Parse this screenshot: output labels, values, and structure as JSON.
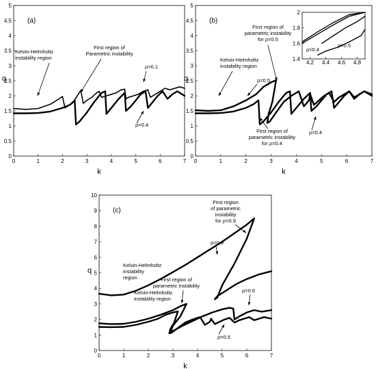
{
  "chart_data": [
    {
      "type": "line",
      "panel": "(a)",
      "xlabel": "k",
      "ylabel": "q",
      "xlim": [
        0,
        7
      ],
      "ylim": [
        0,
        5
      ],
      "xticks": [
        0,
        1,
        2,
        3,
        4,
        5,
        6,
        7
      ],
      "yticks": [
        0,
        0.5,
        1,
        1.5,
        2,
        2.5,
        3,
        3.5,
        4,
        4.5,
        5
      ],
      "grid": false,
      "series": [
        {
          "name": "ρ=0.1",
          "style": "thin",
          "x": [
            0,
            0.5,
            1,
            1.5,
            1.9,
            2.0,
            2.1,
            2.4,
            2.75,
            2.85,
            3.0,
            3.2,
            3.4,
            3.5,
            3.6,
            3.8,
            4.0,
            4.2,
            4.4,
            4.55,
            4.6,
            4.7,
            4.9,
            5.1,
            5.3,
            5.5,
            5.6,
            5.8,
            6.0,
            6.2,
            6.4,
            6.6,
            6.8,
            7.0
          ],
          "y": [
            1.58,
            1.55,
            1.58,
            1.72,
            1.92,
            1.98,
            1.6,
            1.75,
            2.18,
            1.75,
            1.85,
            1.95,
            2.1,
            2.15,
            1.95,
            2.0,
            2.05,
            2.1,
            2.2,
            2.22,
            1.9,
            1.95,
            2.0,
            2.05,
            2.15,
            2.2,
            1.95,
            2.05,
            2.15,
            2.25,
            2.2,
            2.25,
            2.3,
            2.25
          ]
        },
        {
          "name": "ρ=0.4",
          "style": "thick",
          "x": [
            0,
            0.5,
            1,
            1.5,
            2.0,
            2.3,
            2.5,
            2.55,
            2.7,
            3.0,
            3.3,
            3.6,
            3.75,
            3.8,
            4.0,
            4.3,
            4.55,
            4.6,
            4.8,
            5.0,
            5.2,
            5.4,
            5.5,
            5.7,
            5.9,
            6.1,
            6.3,
            6.5,
            6.7,
            7.0
          ],
          "y": [
            1.42,
            1.42,
            1.43,
            1.48,
            1.6,
            1.7,
            1.85,
            1.05,
            1.15,
            1.45,
            1.8,
            2.1,
            2.15,
            1.4,
            1.6,
            1.9,
            2.1,
            1.5,
            1.65,
            1.85,
            2.05,
            2.15,
            1.6,
            1.8,
            2.0,
            2.15,
            1.9,
            2.05,
            2.15,
            2.0
          ]
        }
      ],
      "annotations": [
        {
          "text": "Kelvin-Helmholtz"
        },
        {
          "text": "instability region"
        },
        {
          "text": "First region of"
        },
        {
          "text": "Parametric instability"
        },
        {
          "text": "ρ=0.1"
        },
        {
          "text": "ρ=0.4"
        }
      ]
    },
    {
      "type": "line",
      "panel": "(b)",
      "xlabel": "k",
      "ylabel": "q",
      "xlim": [
        0,
        7
      ],
      "ylim": [
        0,
        5
      ],
      "xticks": [
        0,
        1,
        2,
        3,
        4,
        5,
        6,
        7
      ],
      "yticks": [
        0,
        0.5,
        1,
        1.5,
        2,
        2.5,
        3,
        3.5,
        4,
        4.5,
        5
      ],
      "grid": false,
      "series": [
        {
          "name": "ρ=0.5",
          "style": "thick",
          "x": [
            0,
            0.5,
            1,
            1.5,
            2.0,
            2.4,
            2.7,
            3.0,
            3.2,
            3.05,
            2.9,
            2.85,
            2.95,
            3.2,
            3.5,
            3.8,
            4.1,
            4.3,
            4.5,
            4.55,
            4.7,
            4.9,
            5.1,
            5.3,
            5.5,
            5.7,
            5.9,
            6.1,
            6.3,
            6.5,
            6.7,
            7.0
          ],
          "y": [
            1.52,
            1.5,
            1.52,
            1.65,
            1.85,
            2.05,
            2.3,
            2.45,
            2.52,
            1.8,
            1.4,
            1.1,
            1.15,
            1.45,
            1.8,
            2.0,
            2.15,
            1.65,
            1.85,
            2.05,
            1.7,
            1.85,
            2.0,
            2.1,
            1.8,
            1.95,
            2.05,
            2.15,
            1.95,
            2.05,
            2.15,
            2.05
          ]
        },
        {
          "name": "ρ=0.4",
          "style": "thick",
          "x": [
            0,
            0.5,
            1,
            1.5,
            2.0,
            2.3,
            2.5,
            2.55,
            2.7,
            3.0,
            3.3,
            3.6,
            3.75,
            3.8,
            4.0,
            4.3,
            4.55,
            4.6,
            4.8,
            5.0,
            5.2,
            5.4,
            5.5,
            5.7,
            5.9,
            6.1,
            6.3,
            6.5,
            6.7,
            7.0
          ],
          "y": [
            1.42,
            1.42,
            1.43,
            1.48,
            1.6,
            1.72,
            1.85,
            1.05,
            1.15,
            1.45,
            1.8,
            2.1,
            2.15,
            1.4,
            1.6,
            1.9,
            2.1,
            1.5,
            1.65,
            1.85,
            2.05,
            2.15,
            1.6,
            1.8,
            2.0,
            2.15,
            1.9,
            2.05,
            2.15,
            2.0
          ]
        }
      ],
      "annotations": [
        {
          "text": "First region of"
        },
        {
          "text": "parametric instability"
        },
        {
          "text": "for ρ=0.5"
        },
        {
          "text": "Kelvin-Helmholtz"
        },
        {
          "text": "instability region"
        },
        {
          "text": "ρ=0.5"
        },
        {
          "text": "First region of"
        },
        {
          "text": "parametric instability"
        },
        {
          "text": "for ρ=0.4"
        },
        {
          "text": "ρ=0.4"
        }
      ],
      "inset": {
        "xlim": [
          4.1,
          4.9
        ],
        "ylim": [
          1.4,
          2.0
        ],
        "xticks": [
          4.2,
          4.4,
          4.6,
          4.8
        ],
        "yticks": [
          1.4,
          1.6,
          1.8,
          2
        ],
        "series": [
          {
            "name": "ρ=0.4",
            "x": [
              4.1,
              4.3,
              4.5,
              4.7,
              4.9
            ],
            "y": [
              1.6,
              1.72,
              1.84,
              1.95,
              2.0
            ]
          },
          {
            "name": "ρ=0.4b",
            "x": [
              4.1,
              4.3,
              4.5,
              4.7,
              4.9
            ],
            "y": [
              1.62,
              1.75,
              1.87,
              1.97,
              2.0
            ]
          },
          {
            "name": "ρ=0.5",
            "x": [
              4.3,
              4.4,
              4.55,
              4.7,
              4.85,
              4.9
            ],
            "y": [
              1.45,
              1.5,
              1.55,
              1.62,
              1.7,
              1.78
            ]
          },
          {
            "name": "ρ=0.5b",
            "x": [
              4.35,
              4.5,
              4.65,
              4.8,
              4.9
            ],
            "y": [
              1.6,
              1.7,
              1.8,
              1.88,
              1.95
            ]
          }
        ],
        "annotations": [
          {
            "text": "ρ=0.4"
          },
          {
            "text": "ρ=0.5"
          }
        ]
      }
    },
    {
      "type": "line",
      "panel": "(c)",
      "xlabel": "k",
      "ylabel": "q",
      "xlim": [
        0,
        7
      ],
      "ylim": [
        0,
        10
      ],
      "xticks": [
        0,
        1,
        2,
        3,
        4,
        5,
        6,
        7
      ],
      "yticks": [
        0,
        1,
        2,
        3,
        4,
        5,
        6,
        7,
        8,
        9,
        10
      ],
      "grid": false,
      "series": [
        {
          "name": "ρ=0.9",
          "style": "thick",
          "x": [
            0,
            0.5,
            1,
            1.5,
            2,
            2.5,
            3,
            3.5,
            4,
            4.5,
            5,
            5.5,
            6,
            6.3,
            6.0,
            5.5,
            5.0,
            4.8,
            4.7,
            4.8,
            5.2,
            5.6,
            6.0,
            6.5,
            7.0
          ],
          "y": [
            3.65,
            3.55,
            3.6,
            3.85,
            4.2,
            4.6,
            5.05,
            5.5,
            6.0,
            6.5,
            7.0,
            7.55,
            8.1,
            8.5,
            7.2,
            5.6,
            4.2,
            3.4,
            3.3,
            3.5,
            3.9,
            4.3,
            4.6,
            4.9,
            5.1
          ]
        },
        {
          "name": "ρ=0.6",
          "style": "thick",
          "x": [
            0,
            0.5,
            1,
            1.5,
            2,
            2.5,
            3,
            3.3,
            3.55,
            3.3,
            3.0,
            2.9,
            3.05,
            3.4,
            3.8,
            4.2,
            4.6,
            5.0,
            5.3,
            5.45,
            5.5,
            5.7,
            6.0,
            6.3,
            6.6,
            7.0
          ],
          "y": [
            1.75,
            1.7,
            1.72,
            1.85,
            2.05,
            2.3,
            2.6,
            2.85,
            3.0,
            2.2,
            1.6,
            1.2,
            1.3,
            1.6,
            1.9,
            2.2,
            2.45,
            2.65,
            2.75,
            2.7,
            2.0,
            2.2,
            2.45,
            2.6,
            2.5,
            2.6
          ]
        },
        {
          "name": "ρ=0.5",
          "style": "thick",
          "x": [
            0,
            0.5,
            1,
            1.5,
            2.0,
            2.4,
            2.7,
            3.0,
            3.2,
            3.05,
            2.9,
            2.85,
            2.95,
            3.2,
            3.5,
            3.8,
            4.1,
            4.3,
            4.5,
            4.55,
            4.7,
            4.9,
            5.1,
            5.3,
            5.5,
            5.7,
            5.9,
            6.1,
            6.3,
            6.5,
            6.7,
            7.0
          ],
          "y": [
            1.52,
            1.5,
            1.52,
            1.65,
            1.85,
            2.05,
            2.3,
            2.45,
            2.52,
            1.8,
            1.4,
            1.1,
            1.15,
            1.45,
            1.8,
            2.0,
            2.15,
            1.65,
            1.85,
            2.05,
            1.7,
            1.85,
            2.0,
            2.1,
            1.8,
            1.95,
            2.05,
            2.15,
            1.95,
            2.05,
            2.15,
            2.05
          ]
        }
      ],
      "annotations": [
        {
          "text": "First region"
        },
        {
          "text": "of parametric"
        },
        {
          "text": "instability"
        },
        {
          "text": "for ρ=0.9"
        },
        {
          "text": "ρ=0.9"
        },
        {
          "text": "Kelvin-Helmholtz"
        },
        {
          "text": "instability"
        },
        {
          "text": "region"
        },
        {
          "text": "First region of"
        },
        {
          "text": "parametric instability"
        },
        {
          "text": "Kelvin-Helmholtz"
        },
        {
          "text": "instability region"
        },
        {
          "text": "ρ=0.6"
        },
        {
          "text": "ρ=0.5"
        }
      ]
    }
  ]
}
